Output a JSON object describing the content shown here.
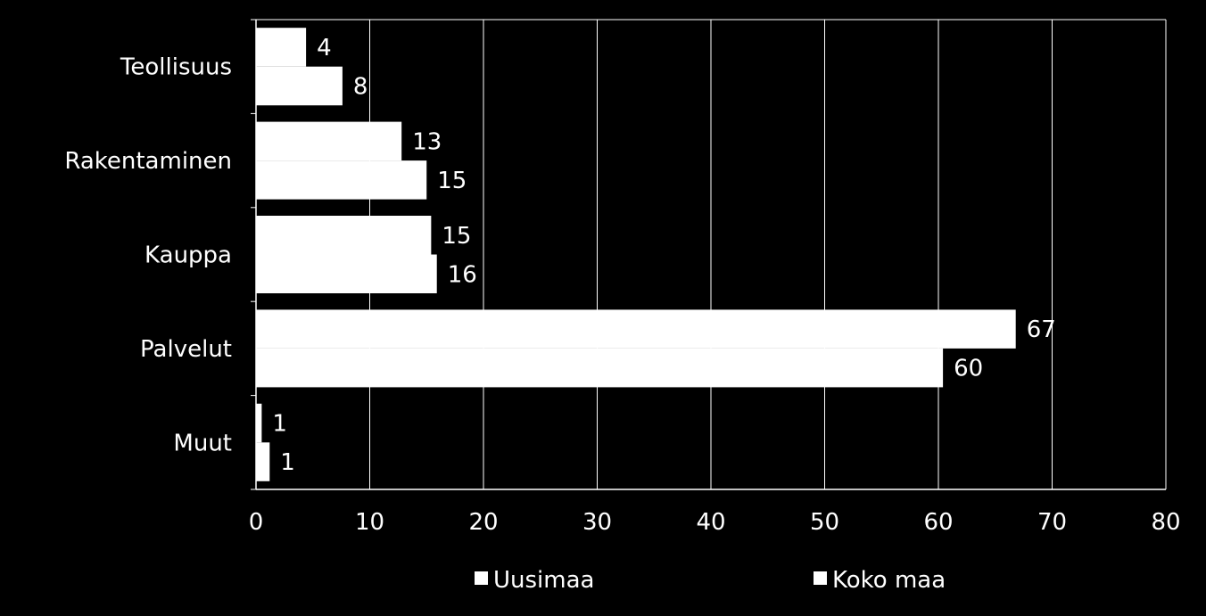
{
  "chart_data": {
    "type": "bar",
    "orientation": "horizontal",
    "categories": [
      "Teollisuus",
      "Rakentaminen",
      "Kauppa",
      "Palvelut",
      "Muut"
    ],
    "series": [
      {
        "name": "Uusimaa",
        "values": [
          4.4,
          12.8,
          15.4,
          66.8,
          0.5
        ],
        "labels": [
          "4",
          "13",
          "15",
          "67",
          "1"
        ]
      },
      {
        "name": "Koko maa",
        "values": [
          7.6,
          15.0,
          15.9,
          60.4,
          1.2
        ],
        "labels": [
          "8",
          "15",
          "16",
          "60",
          "1"
        ]
      }
    ],
    "xlim": [
      0,
      80
    ],
    "xticks": [
      "0",
      "10",
      "20",
      "30",
      "40",
      "50",
      "60",
      "70",
      "80"
    ],
    "grid": true,
    "legend_position": "bottom",
    "colors": {
      "background": "#000000",
      "bars": "#ffffff",
      "grid": "#ffffff",
      "text": "#ffffff"
    }
  }
}
